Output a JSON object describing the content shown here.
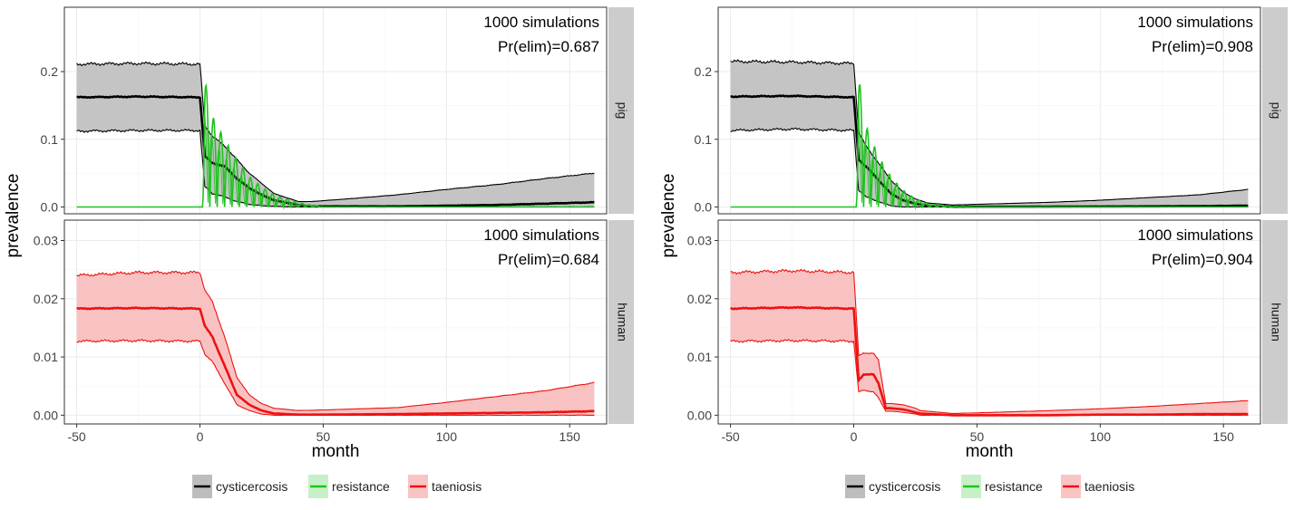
{
  "chart_data": [
    {
      "type": "area",
      "panel": "left",
      "xlabel": "month",
      "ylabel": "prevalence",
      "xlim": [
        -55,
        165
      ],
      "x_ticks": [
        "-50",
        "0",
        "50",
        "100",
        "150"
      ],
      "grid": true,
      "facets": [
        {
          "strip": "pig",
          "ylim": [
            -0.01,
            0.295
          ],
          "y_ticks": [
            "0.0",
            "0.1",
            "0.2"
          ],
          "annotation": [
            "1000 simulations",
            "Pr(elim)=0.687"
          ],
          "series": [
            {
              "name": "cysticercosis",
              "x": [
                -50,
                -25,
                0,
                2,
                5,
                10,
                15,
                20,
                25,
                30,
                40,
                45,
                60,
                80,
                100,
                120,
                140,
                160
              ],
              "mean": [
                0.162,
                0.163,
                0.162,
                0.075,
                0.065,
                0.06,
                0.042,
                0.028,
                0.018,
                0.01,
                0.003,
                0.001,
                0.001,
                0.001,
                0.002,
                0.003,
                0.005,
                0.007
              ],
              "lower": [
                0.112,
                0.113,
                0.113,
                0.03,
                0.02,
                0.015,
                0.008,
                0.004,
                0.002,
                0.001,
                0.0,
                0.0,
                0.0,
                0.0,
                0.0,
                0.0,
                0.0,
                0.0
              ],
              "upper": [
                0.211,
                0.212,
                0.211,
                0.12,
                0.105,
                0.09,
                0.07,
                0.05,
                0.035,
                0.02,
                0.008,
                0.008,
                0.012,
                0.018,
                0.026,
                0.033,
                0.042,
                0.05
              ]
            },
            {
              "name": "resistance",
              "x": [
                -50,
                1,
                2,
                5,
                10,
                15,
                20,
                25,
                30,
                40,
                50,
                100,
                160
              ],
              "peaks": [
                0.0,
                0.0,
                0.188,
                0.135,
                0.1,
                0.07,
                0.045,
                0.03,
                0.018,
                0.006,
                0.0,
                0.0,
                0.0
              ]
            }
          ]
        },
        {
          "strip": "human",
          "ylim": [
            -0.0015,
            0.0335
          ],
          "y_ticks": [
            "0.00",
            "0.01",
            "0.02",
            "0.03"
          ],
          "annotation": [
            "1000 simulations",
            "Pr(elim)=0.684"
          ],
          "series": [
            {
              "name": "taeniosis",
              "x": [
                -50,
                -25,
                0,
                2,
                5,
                10,
                15,
                20,
                25,
                30,
                40,
                50,
                80,
                100,
                120,
                140,
                160
              ],
              "mean": [
                0.0183,
                0.0184,
                0.0183,
                0.0153,
                0.0135,
                0.0085,
                0.0035,
                0.0018,
                0.0008,
                0.0003,
                0.0001,
                0.0001,
                0.0002,
                0.0003,
                0.0004,
                0.0005,
                0.0007
              ],
              "lower": [
                0.0127,
                0.0128,
                0.0127,
                0.0105,
                0.0092,
                0.0055,
                0.0018,
                0.0008,
                0.0002,
                0.0,
                0.0,
                0.0,
                0.0,
                0.0,
                0.0,
                0.0,
                0.0
              ],
              "upper": [
                0.024,
                0.0245,
                0.0245,
                0.0215,
                0.0195,
                0.0135,
                0.0065,
                0.0035,
                0.002,
                0.0012,
                0.0008,
                0.0009,
                0.0013,
                0.0022,
                0.0032,
                0.0042,
                0.0056
              ]
            }
          ]
        }
      ]
    },
    {
      "type": "area",
      "panel": "right",
      "xlabel": "month",
      "ylabel": "prevalence",
      "xlim": [
        -55,
        165
      ],
      "x_ticks": [
        "-50",
        "0",
        "50",
        "100",
        "150"
      ],
      "grid": true,
      "facets": [
        {
          "strip": "pig",
          "ylim": [
            -0.01,
            0.295
          ],
          "y_ticks": [
            "0.0",
            "0.1",
            "0.2"
          ],
          "annotation": [
            "1000 simulations",
            "Pr(elim)=0.908"
          ],
          "series": [
            {
              "name": "cysticercosis",
              "x": [
                -50,
                -25,
                0,
                2,
                5,
                10,
                15,
                20,
                25,
                30,
                40,
                50,
                80,
                100,
                120,
                140,
                160
              ],
              "mean": [
                0.163,
                0.164,
                0.162,
                0.07,
                0.06,
                0.04,
                0.02,
                0.01,
                0.005,
                0.002,
                0.0005,
                0.0004,
                0.0005,
                0.0008,
                0.001,
                0.0013,
                0.002
              ],
              "lower": [
                0.113,
                0.115,
                0.113,
                0.025,
                0.015,
                0.008,
                0.002,
                0.0,
                0.0,
                0.0,
                0.0,
                0.0,
                0.0,
                0.0,
                0.0,
                0.0,
                0.0
              ],
              "upper": [
                0.215,
                0.214,
                0.212,
                0.11,
                0.09,
                0.065,
                0.04,
                0.022,
                0.012,
                0.006,
                0.003,
                0.004,
                0.007,
                0.01,
                0.014,
                0.018,
                0.026
              ]
            },
            {
              "name": "resistance",
              "x": [
                -50,
                1,
                2,
                5,
                10,
                15,
                20,
                25,
                30,
                40,
                50,
                100,
                160
              ],
              "peaks": [
                0.0,
                0.0,
                0.192,
                0.12,
                0.075,
                0.045,
                0.025,
                0.012,
                0.005,
                0.001,
                0.0,
                0.0,
                0.0
              ]
            }
          ]
        },
        {
          "strip": "human",
          "ylim": [
            -0.0015,
            0.0335
          ],
          "y_ticks": [
            "0.00",
            "0.01",
            "0.02",
            "0.03"
          ],
          "annotation": [
            "1000 simulations",
            "Pr(elim)=0.904"
          ],
          "series": [
            {
              "name": "taeniosis",
              "x": [
                -50,
                -25,
                0,
                2,
                4,
                8,
                10,
                13,
                15,
                20,
                25,
                27,
                40,
                50,
                80,
                100,
                120,
                140,
                160
              ],
              "mean": [
                0.0183,
                0.0185,
                0.0183,
                0.006,
                0.007,
                0.007,
                0.0055,
                0.0012,
                0.0012,
                0.001,
                0.0005,
                0.0003,
                0.0,
                0.0,
                0.0,
                0.0001,
                0.0001,
                0.0002,
                0.0002
              ],
              "lower": [
                0.0127,
                0.0128,
                0.0127,
                0.004,
                0.0043,
                0.004,
                0.003,
                0.0007,
                0.0007,
                0.0005,
                0.0002,
                0.0,
                0.0,
                0.0,
                0.0,
                0.0,
                0.0,
                0.0,
                0.0
              ],
              "upper": [
                0.0245,
                0.0248,
                0.0245,
                0.0102,
                0.0107,
                0.0106,
                0.0095,
                0.002,
                0.002,
                0.0018,
                0.0012,
                0.0008,
                0.0003,
                0.0004,
                0.0008,
                0.0011,
                0.0015,
                0.002,
                0.0025
              ]
            }
          ]
        }
      ]
    }
  ],
  "legend": {
    "placement": "bottom",
    "items": [
      {
        "label": "cysticercosis",
        "line_color": "#000000",
        "fill_color": "#bdbdbd"
      },
      {
        "label": "resistance",
        "line_color": "#1ec31e",
        "fill_color": "#c8f0c8"
      },
      {
        "label": "taeniosis",
        "line_color": "#ee1111",
        "fill_color": "#f8c4c4"
      }
    ]
  },
  "colors": {
    "cysticercosis_line": "#000000",
    "cysticercosis_fill": "#c4c4c4",
    "resistance_line": "#1ec31e",
    "taeniosis_line": "#ee1111",
    "taeniosis_fill": "#f9c2c2",
    "strip_bg": "#cccccc",
    "grid": "#ebebeb"
  }
}
